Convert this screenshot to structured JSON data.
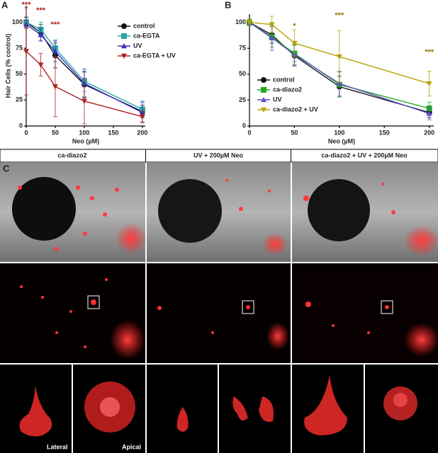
{
  "chart_data": [
    {
      "type": "line",
      "panel_label": "A",
      "ylabel": "Hair Cells (% control)",
      "xlabel": "Neo (µM)",
      "x": [
        0,
        25,
        50,
        100,
        200
      ],
      "xlim": [
        0,
        205
      ],
      "xticks": [
        0,
        50,
        100,
        150,
        200
      ],
      "ylim": [
        0,
        116
      ],
      "yticks": [
        0,
        25,
        50,
        75,
        100
      ],
      "legend": "upper right",
      "series": [
        {
          "name": "control",
          "color": "#111111",
          "marker": "circle",
          "values": [
            100,
            90,
            68,
            40,
            14
          ],
          "errors": [
            5,
            8,
            12,
            12,
            6
          ]
        },
        {
          "name": "ca-EGTA",
          "color": "#2ba6a6",
          "marker": "square",
          "values": [
            100,
            93,
            75,
            43,
            16
          ],
          "errors": [
            4,
            7,
            8,
            10,
            8
          ]
        },
        {
          "name": "UV",
          "color": "#3b2fc0",
          "marker": "triangle-up",
          "values": [
            98,
            88,
            72,
            41,
            13
          ],
          "errors": [
            4,
            6,
            10,
            14,
            10
          ]
        },
        {
          "name": "ca-EGTA + UV",
          "color": "#b02020",
          "marker": "triangle-down",
          "values": [
            72,
            59,
            38,
            24,
            9
          ],
          "errors": [
            42,
            11,
            29,
            22,
            5
          ]
        }
      ],
      "annotations": [
        {
          "x": 0,
          "text": "***",
          "color": "#b02020"
        },
        {
          "x": 25,
          "text": "***",
          "color": "#b02020"
        },
        {
          "x": 50,
          "text": "***",
          "color": "#b02020"
        }
      ]
    },
    {
      "type": "line",
      "panel_label": "B",
      "xlabel": "Neo (µM)",
      "x": [
        0,
        25,
        50,
        100,
        200
      ],
      "xlim": [
        0,
        205
      ],
      "xticks": [
        0,
        50,
        100,
        150,
        200
      ],
      "ylim": [
        0,
        108
      ],
      "yticks": [
        0,
        25,
        50,
        75,
        100
      ],
      "legend": "lower left",
      "series": [
        {
          "name": "control",
          "color": "#111111",
          "marker": "circle",
          "values": [
            100,
            88,
            68,
            38,
            13
          ],
          "errors": [
            3,
            8,
            10,
            10,
            5
          ]
        },
        {
          "name": "ca-diazo2",
          "color": "#22aa22",
          "marker": "square",
          "values": [
            100,
            86,
            70,
            40,
            17
          ],
          "errors": [
            3,
            10,
            8,
            12,
            6
          ]
        },
        {
          "name": "UV",
          "color": "#5a4fc8",
          "marker": "triangle-up",
          "values": [
            100,
            85,
            69,
            41,
            12
          ],
          "errors": [
            3,
            12,
            10,
            12,
            6
          ]
        },
        {
          "name": "ca-diazo2 + UV",
          "color": "#b5a400",
          "marker": "triangle-down",
          "values": [
            100,
            98,
            80,
            67,
            41
          ],
          "errors": [
            3,
            8,
            13,
            25,
            12
          ]
        }
      ],
      "annotations": [
        {
          "x": 50,
          "text": "*",
          "color": "#8a7d00"
        },
        {
          "x": 100,
          "text": "***",
          "color": "#8a7d00"
        },
        {
          "x": 200,
          "text": "***",
          "color": "#8a7d00"
        }
      ]
    }
  ],
  "image_panel": {
    "label": "C",
    "columns": [
      "ca-diazo2",
      "UV + 200µM Neo",
      "ca-diazo2 + UV + 200µM Neo"
    ],
    "sublabels": [
      "Lateral",
      "Apical"
    ]
  }
}
